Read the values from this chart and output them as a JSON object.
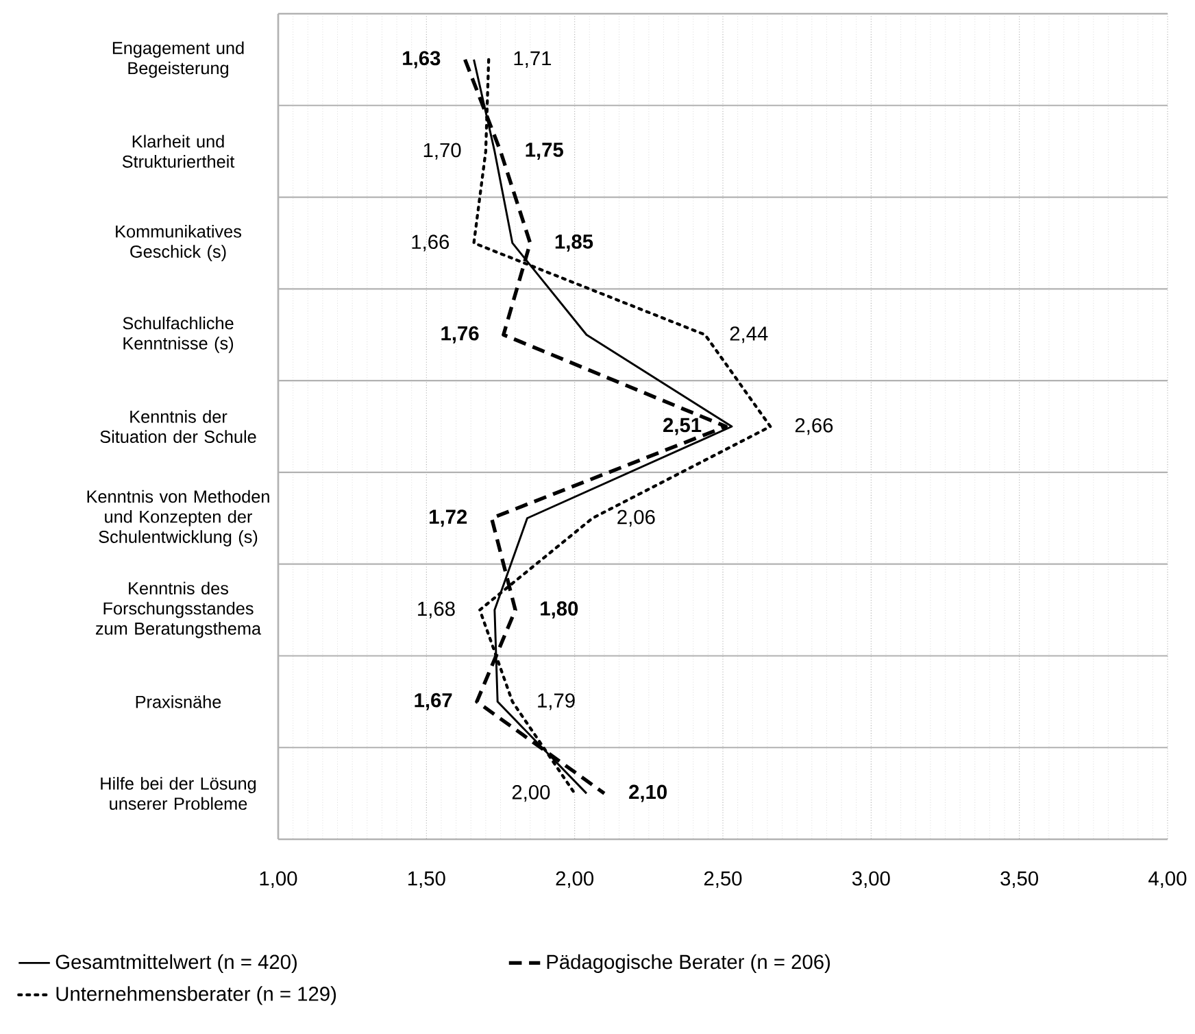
{
  "chart_data": {
    "type": "line",
    "orientation": "horizontal",
    "categories": [
      "Engagement und Begeisterung",
      "Klarheit und Strukturiertheit",
      "Kommunikatives Geschick (s)",
      "Schulfachliche Kenntnisse (s)",
      "Kenntnis der Situation der Schule",
      "Kenntnis von Methoden und Konzepten der Schulentwicklung (s)",
      "Kenntnis des Forschungsstandes zum Beratungsthema",
      "Praxisnähe",
      "Hilfe bei der Lösung unserer Probleme"
    ],
    "series": [
      {
        "name": "Gesamtmittelwert (n = 420)",
        "color": "#000000",
        "line_style": "solid",
        "values": [
          1.66,
          1.73,
          1.79,
          2.04,
          2.53,
          1.84,
          1.73,
          1.74,
          2.04
        ]
      },
      {
        "name": "Pädagogische Berater (n = 206)",
        "color": "#000000",
        "line_style": "dashed",
        "values": [
          1.63,
          1.75,
          1.85,
          1.76,
          2.51,
          1.72,
          1.8,
          1.67,
          2.1
        ],
        "value_labels": [
          "1,63",
          "1,75",
          "1,85",
          "1,76",
          "2,51",
          "1,72",
          "1,80",
          "1,67",
          "2,10"
        ]
      },
      {
        "name": "Unternehmensberater (n = 129)",
        "color": "#000000",
        "line_style": "dotted",
        "values": [
          1.71,
          1.7,
          1.66,
          2.44,
          2.66,
          2.06,
          1.68,
          1.79,
          2.0
        ],
        "value_labels": [
          "1,71",
          "1,70",
          "1,66",
          "2,44",
          "2,66",
          "2,06",
          "1,68",
          "1,79",
          "2,00"
        ]
      }
    ],
    "xlim": [
      1,
      4
    ],
    "xticks": [
      {
        "value": 1,
        "label": "1,00"
      },
      {
        "value": 1.5,
        "label": "1,50"
      },
      {
        "value": 2,
        "label": "2,00"
      },
      {
        "value": 2.5,
        "label": "2,50"
      },
      {
        "value": 3,
        "label": "3,00"
      },
      {
        "value": 3.5,
        "label": "3,50"
      },
      {
        "value": 4,
        "label": "4,00"
      }
    ],
    "grid": true,
    "legend": "bottom",
    "marker": "none"
  }
}
